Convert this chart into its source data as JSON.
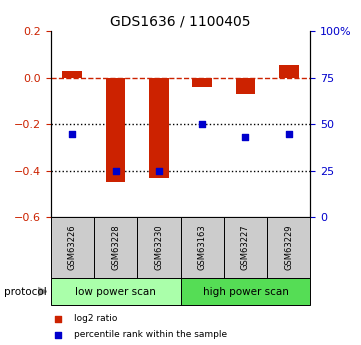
{
  "title": "GDS1636 / 1100405",
  "samples": [
    "GSM63226",
    "GSM63228",
    "GSM63230",
    "GSM63163",
    "GSM63227",
    "GSM63229"
  ],
  "log2_ratio": [
    0.03,
    -0.45,
    -0.43,
    -0.04,
    -0.07,
    0.055
  ],
  "percentile_rank": [
    45,
    25,
    25,
    50,
    43,
    45
  ],
  "ylim_left": [
    -0.6,
    0.2
  ],
  "ylim_right": [
    0,
    100
  ],
  "left_yticks": [
    -0.6,
    -0.4,
    -0.2,
    0.0,
    0.2
  ],
  "right_yticks": [
    0,
    25,
    50,
    75,
    100
  ],
  "right_yticklabels": [
    "0",
    "25",
    "50",
    "75",
    "100%"
  ],
  "bar_color": "#cc2200",
  "scatter_color": "#0000cc",
  "dashed_line_color": "#cc2200",
  "dotted_line_color": "#000000",
  "bg_color": "#ffffff",
  "plot_bg_color": "#ffffff",
  "protocol_groups": [
    {
      "label": "low power scan",
      "samples": [
        0,
        1,
        2
      ],
      "color": "#aaffaa"
    },
    {
      "label": "high power scan",
      "samples": [
        3,
        4,
        5
      ],
      "color": "#55dd55"
    }
  ],
  "sample_box_color": "#cccccc",
  "legend_items": [
    {
      "label": "log2 ratio",
      "color": "#cc2200"
    },
    {
      "label": "percentile rank within the sample",
      "color": "#0000cc"
    }
  ]
}
